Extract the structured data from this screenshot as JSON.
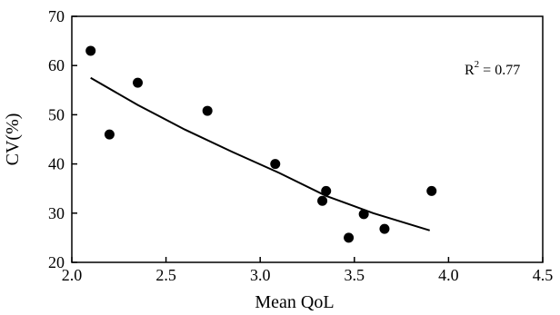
{
  "chart_data": {
    "type": "scatter",
    "title": "",
    "xlabel": "Mean QoL",
    "ylabel": "CV(%)",
    "xlim": [
      2.0,
      4.5
    ],
    "ylim": [
      20,
      70
    ],
    "x_ticks": [
      "2.0",
      "2.5",
      "3.0",
      "3.5",
      "4.0",
      "4.5"
    ],
    "y_ticks": [
      "20",
      "30",
      "40",
      "50",
      "60",
      "70"
    ],
    "annotation": {
      "base": "R",
      "superscript": "2",
      "rest": " = 0.77"
    },
    "series": [
      {
        "points": [
          {
            "x": 2.1,
            "y": 63
          },
          {
            "x": 2.2,
            "y": 46
          },
          {
            "x": 2.35,
            "y": 56.5
          },
          {
            "x": 2.72,
            "y": 50.8
          },
          {
            "x": 3.08,
            "y": 40
          },
          {
            "x": 3.33,
            "y": 32.5
          },
          {
            "x": 3.35,
            "y": 34.5
          },
          {
            "x": 3.47,
            "y": 25
          },
          {
            "x": 3.55,
            "y": 29.8
          },
          {
            "x": 3.66,
            "y": 26.8
          },
          {
            "x": 3.91,
            "y": 34.5
          }
        ]
      }
    ],
    "trendline": {
      "x": [
        2.1,
        2.35,
        2.6,
        2.85,
        3.1,
        3.35,
        3.6,
        3.9
      ],
      "y": [
        57.5,
        52.0,
        47.0,
        42.5,
        38.2,
        33.5,
        30.0,
        26.5
      ]
    },
    "grid": false,
    "legend": "none"
  }
}
